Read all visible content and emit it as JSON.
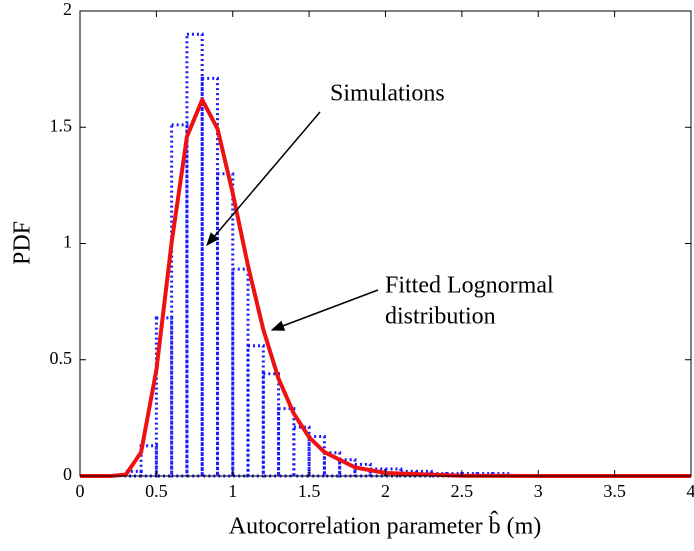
{
  "chart_data": {
    "type": "histogram",
    "xlabel": "Autocorrelation parameter b̂ (m)",
    "ylabel": "PDF",
    "bins": [
      0,
      0.1,
      0.2,
      0.3,
      0.4,
      0.5,
      0.6,
      0.7,
      0.8,
      0.9,
      1.0,
      1.1,
      1.2,
      1.3,
      1.4,
      1.5,
      1.6,
      1.7,
      1.8,
      1.9,
      2.0,
      2.1,
      2.2,
      2.3,
      2.4,
      2.5,
      2.6,
      2.7,
      2.8,
      2.9,
      3.0,
      3.1,
      3.2,
      3.3,
      3.4,
      3.5,
      3.6,
      3.7,
      3.8,
      3.9,
      4.0
    ],
    "counts": [
      0,
      0,
      0,
      0.02,
      0.13,
      0.68,
      1.51,
      1.9,
      1.71,
      1.3,
      0.89,
      0.56,
      0.44,
      0.29,
      0.21,
      0.17,
      0.1,
      0.07,
      0.05,
      0.03,
      0.03,
      0.02,
      0.02,
      0.01,
      0.01,
      0.01,
      0.01,
      0.01,
      0,
      0,
      0,
      0,
      0,
      0,
      0,
      0,
      0,
      0,
      0,
      0
    ],
    "color": "#1a1aff",
    "fit": {
      "color": "#ee1111",
      "x": [
        0,
        0.2,
        0.3,
        0.4,
        0.5,
        0.6,
        0.7,
        0.8,
        0.9,
        1.0,
        1.1,
        1.2,
        1.3,
        1.4,
        1.5,
        1.6,
        1.8,
        2.0,
        2.5,
        3,
        4
      ],
      "y": [
        0,
        0,
        0.006,
        0.102,
        0.456,
        1.005,
        1.459,
        1.618,
        1.494,
        1.216,
        0.904,
        0.63,
        0.418,
        0.268,
        0.167,
        0.103,
        0.037,
        0.013,
        0.001,
        0,
        0
      ]
    },
    "annotations": [
      "Simulations",
      "Fitted Lognormal",
      "distribution"
    ],
    "xlim": [
      0,
      4
    ],
    "xticks": [
      0,
      0.5,
      1,
      1.5,
      2,
      2.5,
      3,
      3.5,
      4
    ],
    "ylim": [
      0,
      2
    ],
    "yticks": [
      0,
      0.5,
      1,
      1.5,
      2
    ]
  }
}
